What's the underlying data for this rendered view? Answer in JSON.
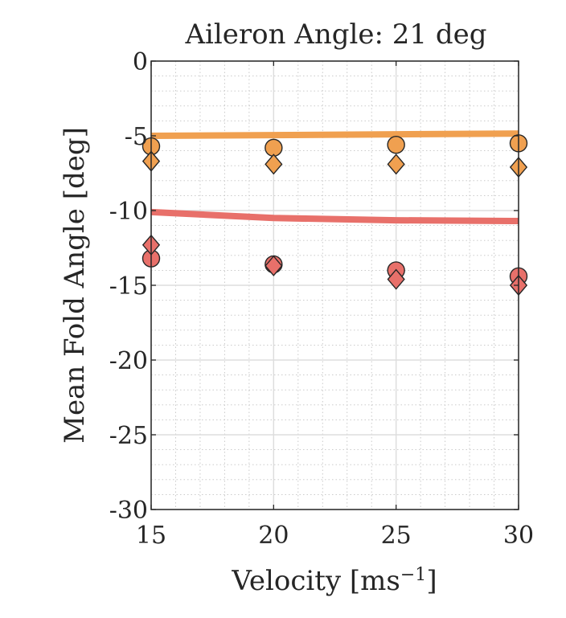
{
  "chart_data": {
    "type": "scatter",
    "title": "Aileron Angle: 21 deg",
    "xlabel": "Velocity [ms",
    "xlabel_exponent": "−1",
    "xlabel_suffix": "]",
    "ylabel": "Mean Fold Angle [deg]",
    "xlim": [
      15,
      30
    ],
    "ylim": [
      -30,
      0
    ],
    "xticks": [
      15,
      20,
      25,
      30
    ],
    "yticks": [
      0,
      -5,
      -10,
      -15,
      -20,
      -25,
      -30
    ],
    "xtick_labels": [
      "15",
      "20",
      "25",
      "30"
    ],
    "ytick_labels": [
      "0",
      "-5",
      "-10",
      "-15",
      "-20",
      "-25",
      "-30"
    ],
    "grid": true,
    "minor_grid": true,
    "legend": "none",
    "series": [
      {
        "kind": "line",
        "color": "#F0A050",
        "x": [
          15,
          20,
          25,
          30
        ],
        "y": [
          -5.0,
          -4.95,
          -4.9,
          -4.85
        ]
      },
      {
        "kind": "line",
        "color": "#E8706A",
        "x": [
          15,
          20,
          25,
          30
        ],
        "y": [
          -10.1,
          -10.5,
          -10.65,
          -10.7
        ]
      },
      {
        "kind": "circle",
        "color": "#F0A050",
        "x": [
          15,
          20,
          25,
          30
        ],
        "y": [
          -5.7,
          -5.8,
          -5.6,
          -5.5
        ]
      },
      {
        "kind": "diamond",
        "color": "#F0A050",
        "x": [
          15,
          20,
          25,
          30
        ],
        "y": [
          -6.7,
          -6.9,
          -6.9,
          -7.1
        ]
      },
      {
        "kind": "circle",
        "color": "#E8706A",
        "x": [
          15,
          20,
          25,
          30
        ],
        "y": [
          -13.2,
          -13.6,
          -14.0,
          -14.4
        ]
      },
      {
        "kind": "diamond",
        "color": "#E8706A",
        "x": [
          15,
          20,
          25,
          30
        ],
        "y": [
          -12.3,
          -13.7,
          -14.6,
          -15.0
        ]
      }
    ]
  }
}
